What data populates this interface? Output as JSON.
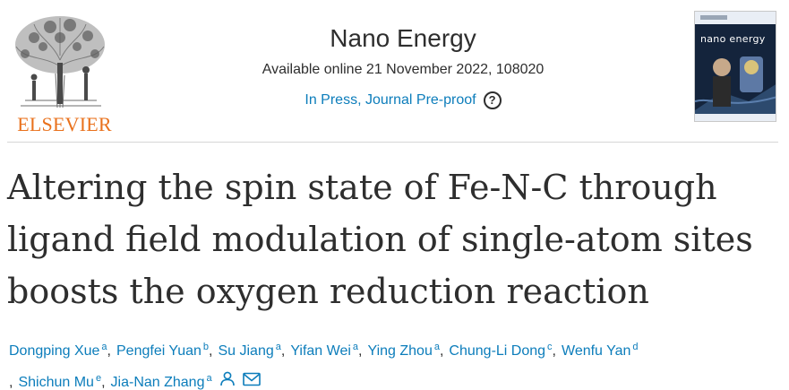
{
  "publisher": {
    "name": "ELSEVIER"
  },
  "journal": {
    "title": "Nano Energy",
    "date_line": "Available online 21 November 2022, 108020",
    "status": "In Press, Journal Pre-proof",
    "help_icon": "question-circle-icon",
    "cover_title": "nano energy"
  },
  "article": {
    "title_lines": [
      "Altering the spin state of Fe-N-C through",
      "ligand field modulation of single-atom sites",
      "boosts the oxygen reduction reaction"
    ]
  },
  "authors": [
    {
      "name": "Dongping Xue",
      "sup": "a"
    },
    {
      "name": "Pengfei Yuan",
      "sup": "b"
    },
    {
      "name": "Su Jiang",
      "sup": "a"
    },
    {
      "name": "Yifan Wei",
      "sup": "a"
    },
    {
      "name": "Ying Zhou",
      "sup": "a"
    },
    {
      "name": "Chung-Li Dong",
      "sup": "c"
    },
    {
      "name": "Wenfu Yan",
      "sup": "d"
    },
    {
      "name": "Shichun Mu",
      "sup": "e"
    },
    {
      "name": "Jia-Nan Zhang",
      "sup": "a"
    }
  ],
  "separator": ",",
  "colors": {
    "accent": "#0c7dbb",
    "publisher": "#e9711c",
    "text": "#2e2e2e"
  },
  "icons": {
    "person": "person-icon",
    "email": "envelope-icon"
  }
}
